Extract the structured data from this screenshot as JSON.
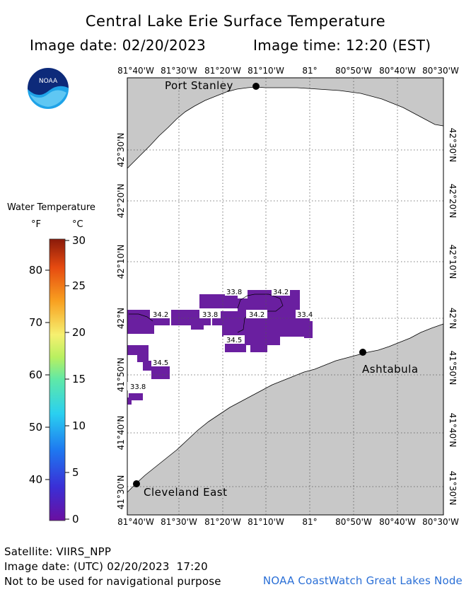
{
  "header": {
    "title": "Central Lake Erie Surface Temperature",
    "image_date": "Image date: 02/20/2023",
    "image_time": "Image time: 12:20 (EST)"
  },
  "logo": {
    "text": "NOAA"
  },
  "map": {
    "lon_labels": [
      "81°40'W",
      "81°30'W",
      "81°20'W",
      "81°10'W",
      "81°",
      "80°50'W",
      "80°40'W",
      "80°30'W"
    ],
    "lat_labels": [
      "42°30'N",
      "42°20'N",
      "42°10'N",
      "42°N",
      "41°50'N",
      "41°40'N",
      "41°30'N"
    ],
    "cities": [
      {
        "name": "Port Stanley"
      },
      {
        "name": "Ashtabula"
      },
      {
        "name": "Cleveland East"
      }
    ],
    "temp_labels": [
      "33.8",
      "34.2",
      "34.2",
      "33.8",
      "34.2",
      "33.4",
      "34.5",
      "34.5",
      "33.8"
    ]
  },
  "legend": {
    "title": "Water Temperature",
    "unit_f": "°F",
    "unit_c": "°C",
    "f_ticks": [
      "80",
      "70",
      "60",
      "50",
      "40"
    ],
    "c_ticks": [
      "30",
      "25",
      "20",
      "15",
      "10",
      "5",
      "0"
    ]
  },
  "footer": {
    "satellite": "Satellite: VIIRS_NPP",
    "utc_date": "Image date: (UTC) 02/20/2023  17:20",
    "disclaimer": "Not to be used for navigational purpose",
    "credit": "NOAA CoastWatch Great Lakes Node"
  }
}
